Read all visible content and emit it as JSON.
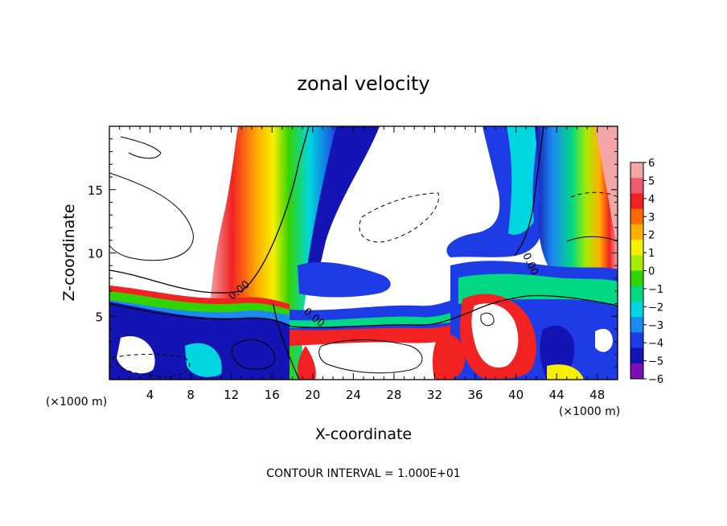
{
  "chart_data": {
    "type": "heatmap",
    "title": "zonal velocity",
    "xlabel": "X-coordinate",
    "ylabel": "Z-coordinate",
    "x_unit_left": "(×1000 m)",
    "x_unit_right": "(×1000 m)",
    "xlim": [
      0,
      50
    ],
    "ylim": [
      0,
      20
    ],
    "x_ticks": [
      4,
      8,
      12,
      16,
      20,
      24,
      28,
      32,
      36,
      40,
      44,
      48
    ],
    "y_ticks": [
      5,
      10,
      15
    ],
    "footer": "CONTOUR INTERVAL = 1.000E+01",
    "contour_labels": [
      "0.00",
      "0.00",
      "0.00"
    ],
    "colorbar": {
      "ticks": [
        "6",
        "5",
        "4",
        "3",
        "2",
        "1",
        "0",
        "−1",
        "−2",
        "−3",
        "−4",
        "−5",
        "−6"
      ],
      "colors": [
        "#f4a6a6",
        "#ef5b6e",
        "#f22222",
        "#ff6a00",
        "#ffb000",
        "#f6f000",
        "#a6ec00",
        "#32d400",
        "#00d883",
        "#00d6e0",
        "#1c8bf0",
        "#1e3ce6",
        "#1414b4",
        "#7a10b4"
      ]
    },
    "grid": false,
    "legend": "colorbar-right"
  }
}
